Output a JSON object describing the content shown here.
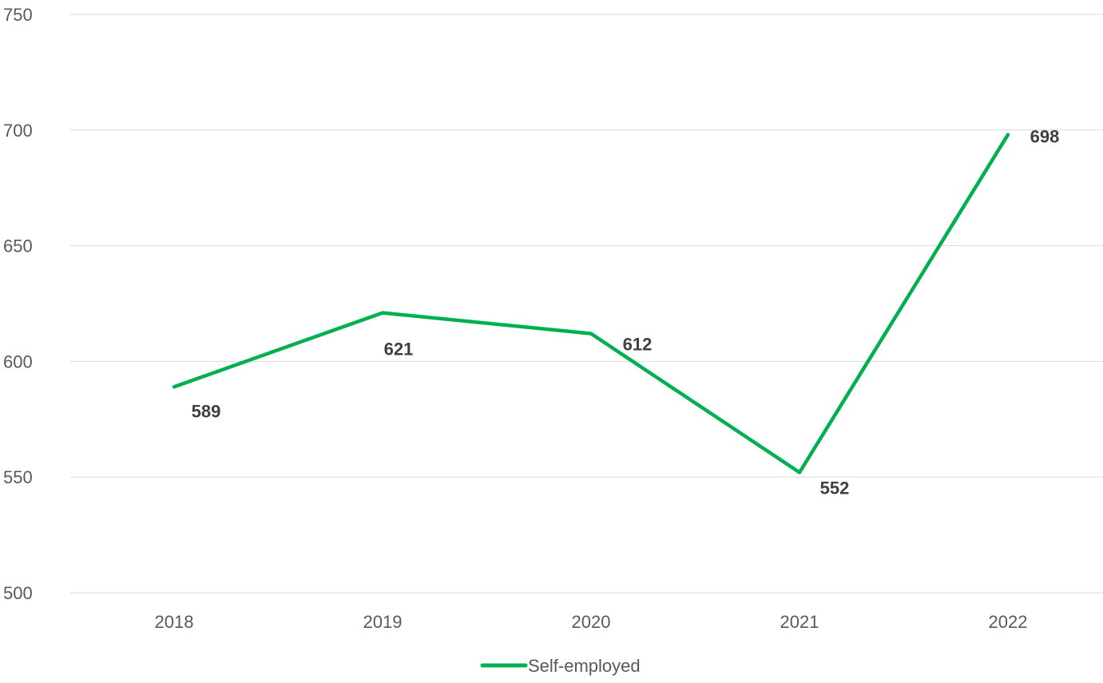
{
  "chart_data": {
    "type": "line",
    "title": "",
    "xlabel": "",
    "ylabel": "",
    "categories": [
      "2018",
      "2019",
      "2020",
      "2021",
      "2022"
    ],
    "series": [
      {
        "name": "Self-employed",
        "values": [
          589,
          621,
          612,
          552,
          698
        ],
        "color": "#00b050"
      }
    ],
    "ylim": [
      500,
      750
    ],
    "yticks": [
      500,
      550,
      600,
      650,
      700,
      750
    ],
    "grid": true,
    "legend": "bottom-center",
    "data_labels": true
  }
}
